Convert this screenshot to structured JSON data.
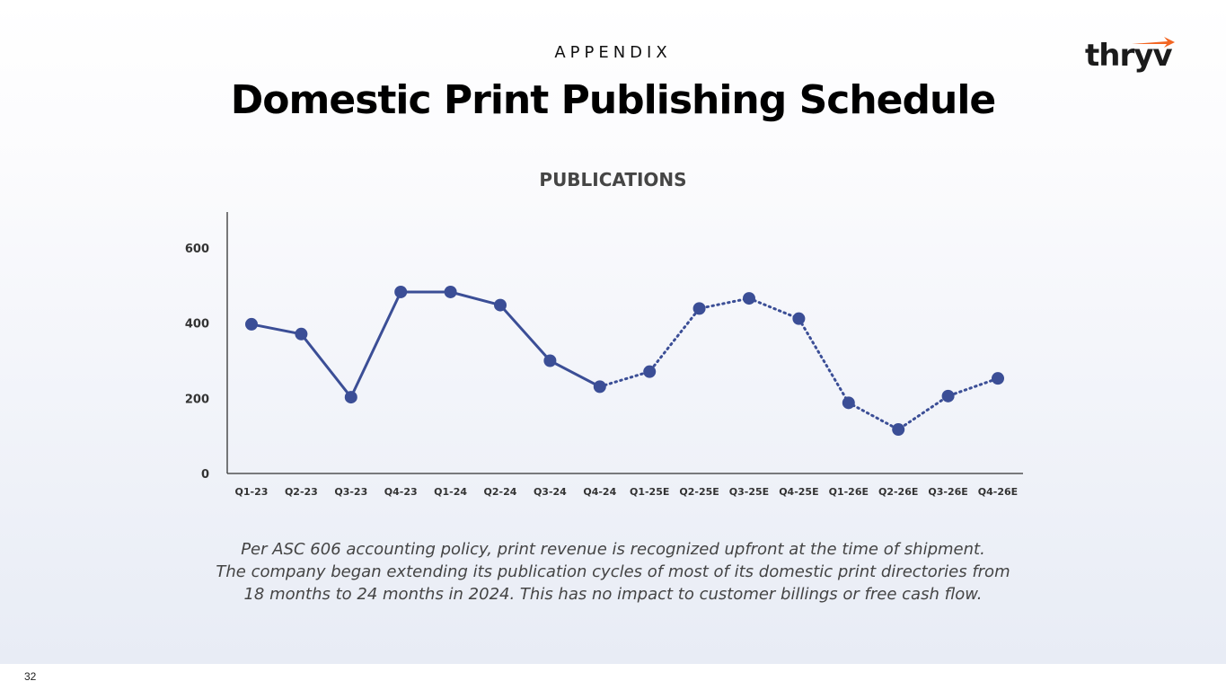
{
  "slide": {
    "kicker": "APPENDIX",
    "title": "Domestic Print Publishing Schedule",
    "logo_text": "thryv",
    "logo_accent_color": "#f26522",
    "caption_lines": [
      "Per ASC 606 accounting policy, print revenue is recognized upfront at the time of shipment.",
      "The company began extending its publication cycles of most of its domestic print directories from",
      "18 months to 24 months in 2024. This has no impact to customer billings or free cash flow."
    ],
    "page_number": "32"
  },
  "chart_data": {
    "type": "line",
    "title": "PUBLICATIONS",
    "categories": [
      "Q1-23",
      "Q2-23",
      "Q3-23",
      "Q4-23",
      "Q1-24",
      "Q2-24",
      "Q3-24",
      "Q4-24",
      "Q1-25E",
      "Q2-25E",
      "Q3-25E",
      "Q4-25E",
      "Q1-26E",
      "Q2-26E",
      "Q3-26E",
      "Q4-26E"
    ],
    "values": [
      397,
      371,
      203,
      483,
      483,
      448,
      300,
      231,
      271,
      439,
      466,
      412,
      188,
      117,
      206,
      253
    ],
    "actual_through_index": 7,
    "actual_style": "solid",
    "estimate_style": "dotted",
    "ylim": [
      0,
      600
    ],
    "yticks": [
      0,
      200,
      400,
      600
    ],
    "xlabel": "",
    "ylabel": "",
    "grid": false,
    "legend": "none",
    "line_color": "#3b4e96"
  }
}
